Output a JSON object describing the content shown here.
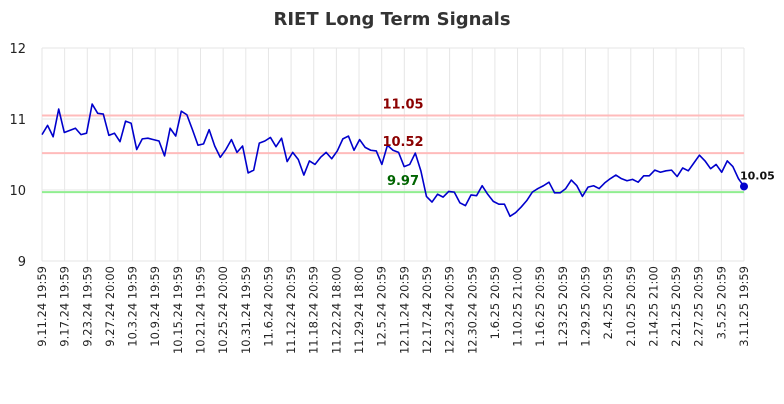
{
  "chart_data": {
    "type": "line",
    "title": "RIET Long Term Signals",
    "xlabel": "",
    "ylabel": "",
    "ylim": [
      9,
      12
    ],
    "yticks": [
      "9",
      "10",
      "11",
      "12"
    ],
    "grid": true,
    "x_tick_labels": [
      "9.11.24 19:59",
      "9.17.24 19:59",
      "9.23.24 19:59",
      "9.27.24 20:00",
      "10.3.24 19:59",
      "10.9.24 19:59",
      "10.15.24 19:59",
      "10.21.24 19:59",
      "10.25.24 20:00",
      "10.31.24 19:59",
      "11.6.24 20:59",
      "11.12.24 20:59",
      "11.18.24 20:59",
      "11.22.24 18:00",
      "11.29.24 18:00",
      "12.5.24 20:59",
      "12.11.24 20:59",
      "12.17.24 20:59",
      "12.23.24 20:59",
      "12.30.24 20:59",
      "1.6.25 20:59",
      "1.10.25 21:00",
      "1.16.25 20:59",
      "1.23.25 20:59",
      "1.29.25 20:59",
      "2.4.25 20:59",
      "2.10.25 20:59",
      "2.14.25 21:00",
      "2.21.25 20:59",
      "2.27.25 20:59",
      "3.5.25 20:59",
      "3.11.25 19:59"
    ],
    "series": [
      {
        "color": "#0000cc",
        "values": [
          10.78,
          10.91,
          10.75,
          11.14,
          10.81,
          10.84,
          10.87,
          10.78,
          10.8,
          11.21,
          11.08,
          11.07,
          10.77,
          10.8,
          10.68,
          10.97,
          10.94,
          10.57,
          10.72,
          10.73,
          10.71,
          10.69,
          10.48,
          10.87,
          10.76,
          11.11,
          11.06,
          10.85,
          10.63,
          10.65,
          10.85,
          10.62,
          10.46,
          10.57,
          10.71,
          10.53,
          10.62,
          10.24,
          10.28,
          10.66,
          10.69,
          10.74,
          10.61,
          10.73,
          10.4,
          10.53,
          10.43,
          10.21,
          10.41,
          10.36,
          10.46,
          10.53,
          10.44,
          10.55,
          10.72,
          10.76,
          10.56,
          10.71,
          10.6,
          10.56,
          10.55,
          10.36,
          10.63,
          10.56,
          10.53,
          10.33,
          10.36,
          10.52,
          10.27,
          9.91,
          9.83,
          9.94,
          9.9,
          9.98,
          9.97,
          9.82,
          9.78,
          9.93,
          9.92,
          10.06,
          9.94,
          9.84,
          9.8,
          9.8,
          9.63,
          9.68,
          9.76,
          9.85,
          9.97,
          10.02,
          10.06,
          10.11,
          9.96,
          9.96,
          10.02,
          10.14,
          10.06,
          9.91,
          10.04,
          10.06,
          10.02,
          10.1,
          10.16,
          10.21,
          10.16,
          10.13,
          10.15,
          10.11,
          10.2,
          10.2,
          10.28,
          10.25,
          10.27,
          10.28,
          10.19,
          10.31,
          10.27,
          10.38,
          10.49,
          10.41,
          10.3,
          10.36,
          10.25,
          10.41,
          10.33,
          10.16,
          10.05
        ]
      }
    ],
    "hlines": [
      {
        "value": 11.05,
        "label": "11.05",
        "color": "#ffbbbb",
        "label_color": "#8b0000"
      },
      {
        "value": 10.52,
        "label": "10.52",
        "color": "#ffbbbb",
        "label_color": "#8b0000"
      },
      {
        "value": 9.97,
        "label": "9.97",
        "color": "#90ee90",
        "label_color": "#006400"
      }
    ],
    "last_value_label": "10.05",
    "last_point_color": "#0000cc"
  }
}
